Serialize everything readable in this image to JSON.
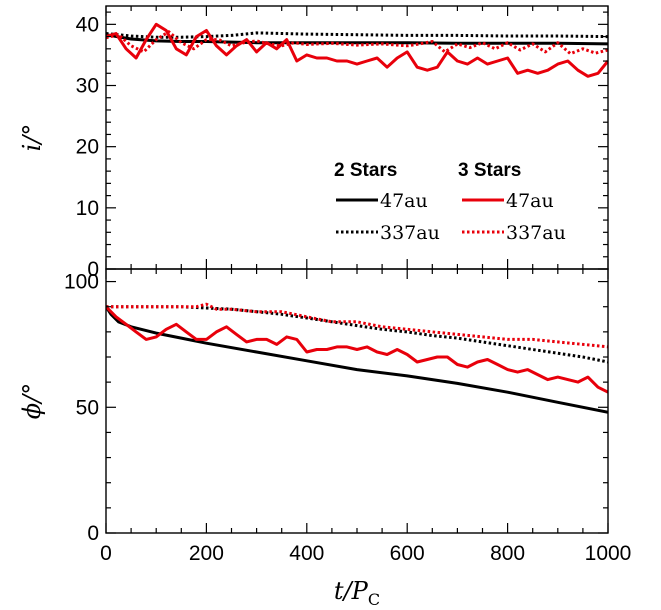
{
  "chart_data": [
    {
      "type": "line",
      "panel": "top",
      "ylabel": "i/°",
      "ylim": [
        0,
        43
      ],
      "yticks": [
        0,
        10,
        20,
        30,
        40
      ],
      "xlim": [
        0,
        1000
      ],
      "legend": {
        "placement": "lower-right",
        "headers": [
          "2 Stars",
          "3 Stars"
        ],
        "entries": [
          "47au",
          "337au",
          "47au",
          "337au"
        ]
      },
      "series": [
        {
          "name": "2 Stars 47au",
          "color": "#000000",
          "dash": "solid",
          "x": [
            0,
            50,
            100,
            150,
            200,
            250,
            300,
            400,
            500,
            600,
            700,
            800,
            900,
            1000
          ],
          "y": [
            38.3,
            37.6,
            37.3,
            37.2,
            37.2,
            37.1,
            37.0,
            37.0,
            37.0,
            37.0,
            36.9,
            36.9,
            36.9,
            36.8
          ]
        },
        {
          "name": "2 Stars 337au",
          "color": "#000000",
          "dash": "dotted",
          "x": [
            0,
            50,
            100,
            150,
            200,
            250,
            300,
            400,
            500,
            600,
            700,
            800,
            900,
            1000
          ],
          "y": [
            38.5,
            38.1,
            37.9,
            37.9,
            38.0,
            38.2,
            38.6,
            38.4,
            38.3,
            38.2,
            38.2,
            38.1,
            38.1,
            38.0
          ]
        },
        {
          "name": "3 Stars 47au",
          "color": "#e8000b",
          "dash": "solid",
          "x": [
            0,
            20,
            40,
            60,
            80,
            100,
            120,
            140,
            160,
            180,
            200,
            220,
            240,
            260,
            280,
            300,
            320,
            340,
            360,
            380,
            400,
            420,
            440,
            460,
            480,
            500,
            520,
            540,
            560,
            580,
            600,
            620,
            640,
            660,
            680,
            700,
            720,
            740,
            760,
            780,
            800,
            820,
            840,
            860,
            880,
            900,
            920,
            940,
            960,
            980,
            1000
          ],
          "y": [
            38.0,
            38.5,
            36.0,
            34.5,
            37.5,
            40.0,
            39.0,
            36.0,
            35.0,
            38.0,
            39.0,
            36.5,
            35.0,
            36.5,
            37.5,
            35.5,
            37.0,
            36.0,
            37.5,
            34.0,
            35.0,
            34.5,
            34.5,
            34.0,
            34.0,
            33.5,
            34.0,
            34.5,
            33.0,
            34.5,
            35.5,
            33.0,
            32.5,
            33.0,
            35.5,
            34.0,
            33.5,
            34.5,
            33.5,
            34.0,
            34.5,
            32.0,
            32.5,
            32.0,
            32.5,
            33.5,
            34.0,
            32.5,
            31.5,
            32.0,
            34.0
          ]
        },
        {
          "name": "3 Stars 337au",
          "color": "#e8000b",
          "dash": "dotted",
          "x": [
            0,
            25,
            50,
            75,
            100,
            125,
            150,
            175,
            200,
            225,
            250,
            275,
            300,
            325,
            350,
            375,
            400,
            450,
            500,
            550,
            600,
            625,
            650,
            675,
            700,
            725,
            750,
            775,
            800,
            825,
            850,
            875,
            900,
            925,
            950,
            975,
            1000
          ],
          "y": [
            37.8,
            38.3,
            36.5,
            35.5,
            37.5,
            38.8,
            37.0,
            36.0,
            37.5,
            37.5,
            36.5,
            37.0,
            37.3,
            36.8,
            36.5,
            37.0,
            36.7,
            36.9,
            36.6,
            36.8,
            36.5,
            36.8,
            37.2,
            35.5,
            36.8,
            36.2,
            37.0,
            36.0,
            37.0,
            35.8,
            36.8,
            35.5,
            37.0,
            35.2,
            36.0,
            35.3,
            35.8
          ]
        }
      ]
    },
    {
      "type": "line",
      "panel": "bottom",
      "ylabel": "ϕ/°",
      "xlabel": "t/P_C",
      "ylim": [
        0,
        105
      ],
      "yticks": [
        0,
        50,
        100
      ],
      "xlim": [
        0,
        1000
      ],
      "xticks": [
        0,
        200,
        400,
        600,
        800,
        1000
      ],
      "series": [
        {
          "name": "2 Stars 47au",
          "color": "#000000",
          "dash": "solid",
          "x": [
            0,
            10,
            25,
            50,
            100,
            150,
            200,
            300,
            400,
            500,
            600,
            700,
            800,
            900,
            1000
          ],
          "y": [
            90,
            87,
            84,
            82,
            79.5,
            77.5,
            75.5,
            72,
            68.5,
            65,
            62.5,
            59.5,
            56,
            52,
            48
          ]
        },
        {
          "name": "2 Stars 337au",
          "color": "#000000",
          "dash": "dotted",
          "x": [
            0,
            50,
            100,
            150,
            200,
            250,
            300,
            350,
            400,
            450,
            500,
            550,
            600,
            650,
            700,
            750,
            800,
            850,
            900,
            950,
            1000
          ],
          "y": [
            90,
            90,
            90,
            90,
            89.5,
            89,
            88,
            87,
            85.5,
            84,
            82.5,
            81,
            80,
            78.5,
            77.5,
            76,
            74.5,
            73,
            71.5,
            70,
            68
          ]
        },
        {
          "name": "3 Stars 47au",
          "color": "#e8000b",
          "dash": "solid",
          "x": [
            0,
            20,
            40,
            60,
            80,
            100,
            120,
            140,
            160,
            180,
            200,
            220,
            240,
            260,
            280,
            300,
            320,
            340,
            360,
            380,
            400,
            420,
            440,
            460,
            480,
            500,
            520,
            540,
            560,
            580,
            600,
            620,
            640,
            660,
            680,
            700,
            720,
            740,
            760,
            780,
            800,
            820,
            840,
            860,
            880,
            900,
            920,
            940,
            960,
            980,
            1000
          ],
          "y": [
            90,
            86,
            83,
            80,
            77,
            78,
            81,
            83,
            80,
            77,
            77,
            80,
            82,
            79,
            76,
            77,
            77,
            75,
            78,
            77,
            72,
            73,
            73,
            74,
            74,
            73,
            74,
            72,
            71,
            73,
            71,
            68,
            69,
            70,
            70,
            67,
            66,
            68,
            69,
            67,
            65,
            64,
            65,
            63,
            61,
            62,
            61,
            60,
            62,
            58,
            56
          ]
        },
        {
          "name": "3 Stars 337au",
          "color": "#e8000b",
          "dash": "dotted",
          "x": [
            0,
            50,
            100,
            150,
            180,
            200,
            220,
            250,
            300,
            350,
            400,
            450,
            500,
            550,
            600,
            650,
            700,
            750,
            800,
            850,
            900,
            950,
            1000
          ],
          "y": [
            90,
            90,
            90,
            90,
            90,
            91,
            89,
            89,
            88,
            88,
            86,
            84,
            84,
            82,
            81,
            80,
            79,
            78,
            77,
            77,
            76,
            75,
            74
          ]
        }
      ]
    }
  ]
}
